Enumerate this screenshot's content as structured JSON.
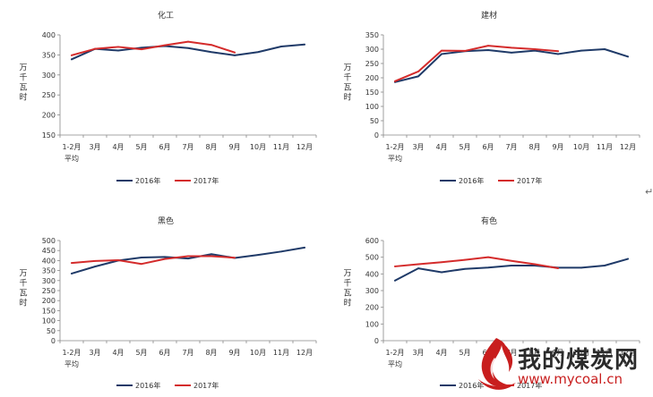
{
  "chart_data": [
    {
      "type": "line",
      "title": "化工",
      "ylabel": "万千瓦时",
      "categories": [
        "1-2月\n平均",
        "3月",
        "4月",
        "5月",
        "6月",
        "7月",
        "8月",
        "9月",
        "10月",
        "11月",
        "12月"
      ],
      "ylim": [
        150,
        400
      ],
      "yticks": [
        150,
        200,
        250,
        300,
        350,
        400
      ],
      "series": [
        {
          "name": "2016年",
          "color": "#1f3a68",
          "values": [
            339,
            365,
            361,
            368,
            372,
            367,
            357,
            349,
            357,
            371,
            376
          ]
        },
        {
          "name": "2017年",
          "color": "#d42b2b",
          "values": [
            349,
            365,
            370,
            364,
            374,
            383,
            375,
            356,
            null,
            null,
            null
          ]
        }
      ],
      "legend": "bottom"
    },
    {
      "type": "line",
      "title": "建材",
      "ylabel": "万千瓦时",
      "categories": [
        "1-2月\n平均",
        "3月",
        "4月",
        "5月",
        "6月",
        "7月",
        "8月",
        "9月",
        "10月",
        "11月",
        "12月"
      ],
      "ylim": [
        0,
        350
      ],
      "yticks": [
        0,
        50,
        100,
        150,
        200,
        250,
        300,
        350
      ],
      "series": [
        {
          "name": "2016年",
          "color": "#1f3a68",
          "values": [
            185,
            205,
            283,
            293,
            297,
            288,
            295,
            283,
            295,
            300,
            274
          ]
        },
        {
          "name": "2017年",
          "color": "#d42b2b",
          "values": [
            188,
            222,
            295,
            294,
            312,
            305,
            300,
            293,
            null,
            null,
            null
          ]
        }
      ],
      "legend": "bottom"
    },
    {
      "type": "line",
      "title": "黑色",
      "ylabel": "万千瓦时",
      "categories": [
        "1-2月\n平均",
        "3月",
        "4月",
        "5月",
        "6月",
        "7月",
        "8月",
        "9月",
        "10月",
        "11月",
        "12月"
      ],
      "ylim": [
        0,
        500
      ],
      "yticks": [
        0,
        50,
        100,
        150,
        200,
        250,
        300,
        350,
        400,
        450,
        500
      ],
      "series": [
        {
          "name": "2016年",
          "color": "#1f3a68",
          "values": [
            335,
            370,
            400,
            415,
            418,
            410,
            432,
            413,
            428,
            445,
            465
          ]
        },
        {
          "name": "2017年",
          "color": "#d42b2b",
          "values": [
            388,
            398,
            402,
            383,
            408,
            422,
            422,
            414,
            null,
            null,
            null
          ]
        }
      ],
      "legend": "bottom"
    },
    {
      "type": "line",
      "title": "有色",
      "ylabel": "万千瓦时",
      "categories": [
        "1-2月\n平均",
        "3月",
        "4月",
        "5月",
        "6月",
        "7月",
        "8月",
        "9月",
        "10月",
        "11月",
        "12月"
      ],
      "ylim": [
        0,
        600
      ],
      "yticks": [
        0,
        100,
        200,
        300,
        400,
        500,
        600
      ],
      "series": [
        {
          "name": "2016年",
          "color": "#1f3a68",
          "values": [
            360,
            433,
            410,
            430,
            438,
            450,
            450,
            437,
            437,
            450,
            490
          ]
        },
        {
          "name": "2017年",
          "color": "#d42b2b",
          "values": [
            445,
            458,
            470,
            484,
            500,
            478,
            458,
            434,
            null,
            null,
            null
          ]
        }
      ],
      "legend": "bottom"
    }
  ],
  "watermark": {
    "title": "我的煤炭网",
    "url": "www.mycoal.cn",
    "flame_color": "#c81e1e"
  },
  "para_mark": "↵"
}
